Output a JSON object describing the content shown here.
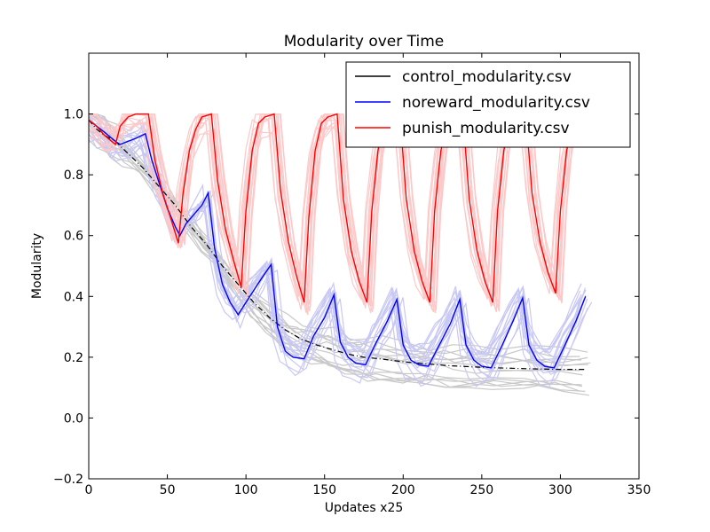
{
  "chart_data": {
    "type": "line",
    "title": "Modularity over Time",
    "xlabel": "Updates x25",
    "ylabel": "Modularity",
    "xlim": [
      0,
      350
    ],
    "ylim": [
      -0.2,
      1.2
    ],
    "grid": false,
    "legend_position": "top-right",
    "x_ticks": [
      0,
      50,
      100,
      150,
      200,
      250,
      300,
      350
    ],
    "x_tick_labels": [
      "0",
      "50",
      "100",
      "150",
      "200",
      "250",
      "300",
      "350"
    ],
    "y_ticks": [
      -0.2,
      0.0,
      0.2,
      0.4,
      0.6,
      0.8,
      1.0
    ],
    "y_tick_labels": [
      "−0.2",
      "0.0",
      "0.2",
      "0.4",
      "0.6",
      "0.8",
      "1.0"
    ],
    "series": [
      {
        "name": "control_modularity.csv",
        "color": "#000000",
        "faint_color": "#c8c8c8",
        "points": [
          [
            0,
            0.98
          ],
          [
            5,
            0.95
          ],
          [
            10,
            0.93
          ],
          [
            17,
            0.91
          ],
          [
            25,
            0.87
          ],
          [
            35,
            0.82
          ],
          [
            45,
            0.76
          ],
          [
            55,
            0.7
          ],
          [
            65,
            0.63
          ],
          [
            75,
            0.57
          ],
          [
            85,
            0.5
          ],
          [
            95,
            0.44
          ],
          [
            105,
            0.38
          ],
          [
            115,
            0.33
          ],
          [
            125,
            0.29
          ],
          [
            135,
            0.26
          ],
          [
            145,
            0.24
          ],
          [
            155,
            0.225
          ],
          [
            165,
            0.21
          ],
          [
            175,
            0.2
          ],
          [
            185,
            0.195
          ],
          [
            200,
            0.185
          ],
          [
            215,
            0.178
          ],
          [
            230,
            0.172
          ],
          [
            245,
            0.168
          ],
          [
            260,
            0.165
          ],
          [
            280,
            0.162
          ],
          [
            300,
            0.16
          ],
          [
            316,
            0.16
          ]
        ]
      },
      {
        "name": "noreward_modularity.csv",
        "color": "#0000ff",
        "faint_color": "#c8c8f4",
        "points": [
          [
            0,
            0.98
          ],
          [
            5,
            0.96
          ],
          [
            10,
            0.94
          ],
          [
            17,
            0.91
          ],
          [
            20,
            0.9
          ],
          [
            25,
            0.91
          ],
          [
            30,
            0.92
          ],
          [
            36,
            0.935
          ],
          [
            40,
            0.85
          ],
          [
            45,
            0.77
          ],
          [
            50,
            0.69
          ],
          [
            55,
            0.63
          ],
          [
            58,
            0.6
          ],
          [
            62,
            0.64
          ],
          [
            67,
            0.67
          ],
          [
            72,
            0.7
          ],
          [
            76,
            0.74
          ],
          [
            80,
            0.56
          ],
          [
            85,
            0.44
          ],
          [
            90,
            0.38
          ],
          [
            95,
            0.34
          ],
          [
            100,
            0.38
          ],
          [
            105,
            0.42
          ],
          [
            110,
            0.46
          ],
          [
            116,
            0.505
          ],
          [
            120,
            0.3
          ],
          [
            125,
            0.22
          ],
          [
            130,
            0.2
          ],
          [
            137,
            0.195
          ],
          [
            143,
            0.27
          ],
          [
            150,
            0.33
          ],
          [
            156,
            0.405
          ],
          [
            160,
            0.25
          ],
          [
            165,
            0.2
          ],
          [
            170,
            0.18
          ],
          [
            176,
            0.175
          ],
          [
            183,
            0.25
          ],
          [
            190,
            0.32
          ],
          [
            196,
            0.39
          ],
          [
            200,
            0.24
          ],
          [
            205,
            0.19
          ],
          [
            210,
            0.175
          ],
          [
            216,
            0.17
          ],
          [
            223,
            0.24
          ],
          [
            230,
            0.31
          ],
          [
            236,
            0.39
          ],
          [
            240,
            0.24
          ],
          [
            245,
            0.19
          ],
          [
            250,
            0.17
          ],
          [
            256,
            0.165
          ],
          [
            263,
            0.24
          ],
          [
            270,
            0.32
          ],
          [
            276,
            0.395
          ],
          [
            280,
            0.24
          ],
          [
            285,
            0.19
          ],
          [
            290,
            0.17
          ],
          [
            296,
            0.165
          ],
          [
            302,
            0.23
          ],
          [
            310,
            0.32
          ],
          [
            316,
            0.4
          ]
        ]
      },
      {
        "name": "punish_modularity.csv",
        "color": "#ff0000",
        "faint_color": "#fcc8c8",
        "points": [
          [
            0,
            0.98
          ],
          [
            5,
            0.96
          ],
          [
            10,
            0.93
          ],
          [
            17,
            0.9
          ],
          [
            20,
            0.96
          ],
          [
            25,
            0.99
          ],
          [
            30,
            1.0
          ],
          [
            38,
            1.0
          ],
          [
            42,
            0.85
          ],
          [
            47,
            0.74
          ],
          [
            52,
            0.66
          ],
          [
            57,
            0.575
          ],
          [
            60,
            0.74
          ],
          [
            64,
            0.88
          ],
          [
            68,
            0.95
          ],
          [
            72,
            0.99
          ],
          [
            78,
            1.0
          ],
          [
            82,
            0.78
          ],
          [
            87,
            0.62
          ],
          [
            92,
            0.52
          ],
          [
            97,
            0.43
          ],
          [
            100,
            0.68
          ],
          [
            104,
            0.88
          ],
          [
            108,
            0.97
          ],
          [
            112,
            0.99
          ],
          [
            118,
            1.0
          ],
          [
            122,
            0.75
          ],
          [
            127,
            0.58
          ],
          [
            132,
            0.47
          ],
          [
            137,
            0.38
          ],
          [
            140,
            0.66
          ],
          [
            144,
            0.88
          ],
          [
            148,
            0.97
          ],
          [
            152,
            0.99
          ],
          [
            158,
            1.0
          ],
          [
            162,
            0.72
          ],
          [
            167,
            0.55
          ],
          [
            172,
            0.45
          ],
          [
            177,
            0.38
          ],
          [
            180,
            0.68
          ],
          [
            184,
            0.88
          ],
          [
            188,
            0.97
          ],
          [
            192,
            0.99
          ],
          [
            198,
            1.0
          ],
          [
            202,
            0.72
          ],
          [
            207,
            0.55
          ],
          [
            212,
            0.45
          ],
          [
            217,
            0.38
          ],
          [
            220,
            0.68
          ],
          [
            224,
            0.88
          ],
          [
            228,
            0.97
          ],
          [
            232,
            0.99
          ],
          [
            238,
            1.0
          ],
          [
            242,
            0.72
          ],
          [
            247,
            0.55
          ],
          [
            252,
            0.45
          ],
          [
            257,
            0.38
          ],
          [
            260,
            0.68
          ],
          [
            264,
            0.88
          ],
          [
            268,
            0.97
          ],
          [
            272,
            0.99
          ],
          [
            278,
            1.0
          ],
          [
            282,
            0.74
          ],
          [
            287,
            0.58
          ],
          [
            292,
            0.48
          ],
          [
            297,
            0.41
          ],
          [
            300,
            0.68
          ],
          [
            304,
            0.88
          ],
          [
            308,
            0.97
          ],
          [
            312,
            0.99
          ],
          [
            316,
            1.0
          ]
        ]
      }
    ]
  }
}
